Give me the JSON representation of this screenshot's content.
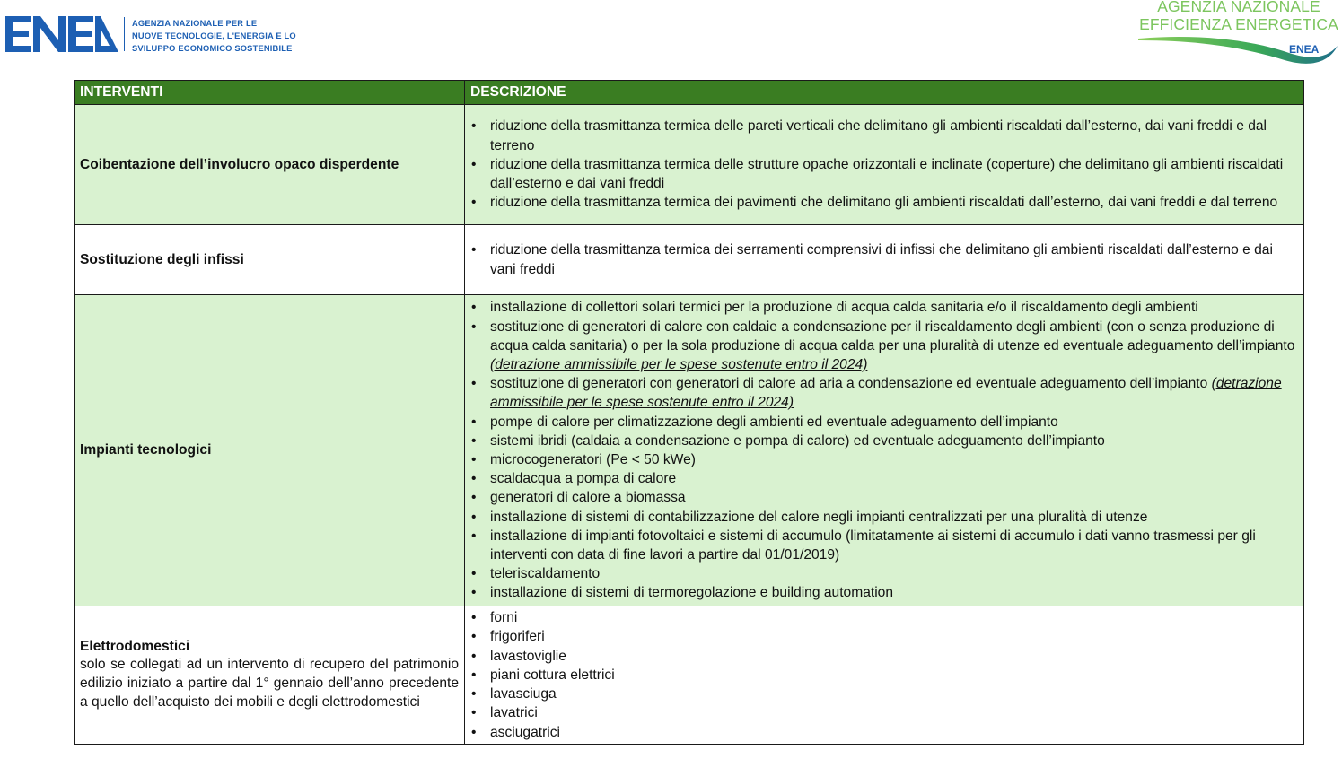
{
  "header": {
    "enea_logo": "ENEA",
    "enea_tagline": [
      "AGENZIA NAZIONALE PER LE",
      "NUOVE TECNOLOGIE, L'ENERGIA E LO",
      "SVILUPPO ECONOMICO SOSTENIBILE"
    ],
    "aee_logo": [
      "AGENZIA NAZIONALE",
      "EFFICIENZA ENERGETICA"
    ],
    "aee_logo_mark": "ENEA"
  },
  "colors": {
    "brand_blue": "#1d5fb3",
    "header_green": "#3a7d22",
    "row_green": "#d9f2d0",
    "logo_green": "#7cc55e"
  },
  "table": {
    "columns": [
      "INTERVENTI",
      "DESCRIZIONE"
    ],
    "rows": [
      {
        "label": "Coibentazione dell’involucro opaco disperdente",
        "shaded": true,
        "items": [
          {
            "text": "riduzione della trasmittanza termica delle pareti verticali che delimitano gli ambienti riscaldati dall’esterno, dai vani freddi e dal terreno"
          },
          {
            "text": "riduzione della trasmittanza termica delle strutture opache orizzontali e inclinate (coperture) che delimitano gli ambienti riscaldati dall’esterno e dai vani freddi"
          },
          {
            "text": "riduzione della trasmittanza termica dei pavimenti che delimitano gli ambienti riscaldati dall’esterno, dai vani freddi e dal terreno"
          }
        ]
      },
      {
        "label": "Sostituzione degli infissi",
        "shaded": false,
        "items": [
          {
            "text": "riduzione della trasmittanza termica dei serramenti comprensivi di infissi che delimitano gli ambienti riscaldati dall’esterno e dai vani freddi"
          }
        ]
      },
      {
        "label": "Impianti tecnologici",
        "shaded": true,
        "items": [
          {
            "text": "installazione di collettori solari termici per la produzione di acqua calda sanitaria e/o il riscaldamento degli ambienti"
          },
          {
            "text": "sostituzione di generatori di calore con caldaie a condensazione per il riscaldamento degli ambienti (con o senza produzione di acqua calda sanitaria) o per la sola produzione di acqua calda per una pluralità di utenze ed eventuale adeguamento dell’impianto ",
            "note": "(detrazione ammissibile per le spese sostenute entro il 2024)"
          },
          {
            "text": "sostituzione di generatori con generatori di calore ad aria a condensazione ed eventuale adeguamento dell’impianto ",
            "note": "(detrazione ammissibile per le spese sostenute entro il 2024)"
          },
          {
            "text": "pompe di calore per climatizzazione degli ambienti ed eventuale adeguamento dell’impianto"
          },
          {
            "text": "sistemi ibridi (caldaia a condensazione e pompa di calore) ed eventuale adeguamento dell’impianto"
          },
          {
            "text": "microcogeneratori (Pe < 50 kWe)"
          },
          {
            "text": "scaldacqua a pompa di calore"
          },
          {
            "text": "generatori di calore a biomassa"
          },
          {
            "text": "installazione di sistemi di contabilizzazione del calore negli impianti centralizzati per una pluralità di utenze"
          },
          {
            "text": "installazione di impianti fotovoltaici e sistemi di accumulo (limitatamente ai sistemi di accumulo i dati vanno trasmessi per gli interventi con data di fine lavori a partire dal 01/01/2019)"
          },
          {
            "text": "teleriscaldamento"
          },
          {
            "text": "installazione di sistemi di termoregolazione e building automation"
          }
        ]
      },
      {
        "label": "Elettrodomestici",
        "shaded": false,
        "sublabel": "solo se collegati ad un intervento di recupero del patrimonio edilizio iniziato a partire dal 1° gennaio dell’anno precedente a quello dell’acquisto dei mobili e degli elettrodomestici",
        "items": [
          {
            "text": "forni"
          },
          {
            "text": "frigoriferi"
          },
          {
            "text": "lavastoviglie"
          },
          {
            "text": "piani cottura elettrici"
          },
          {
            "text": "lavasciuga"
          },
          {
            "text": "lavatrici"
          },
          {
            "text": "asciugatrici"
          }
        ]
      }
    ]
  }
}
